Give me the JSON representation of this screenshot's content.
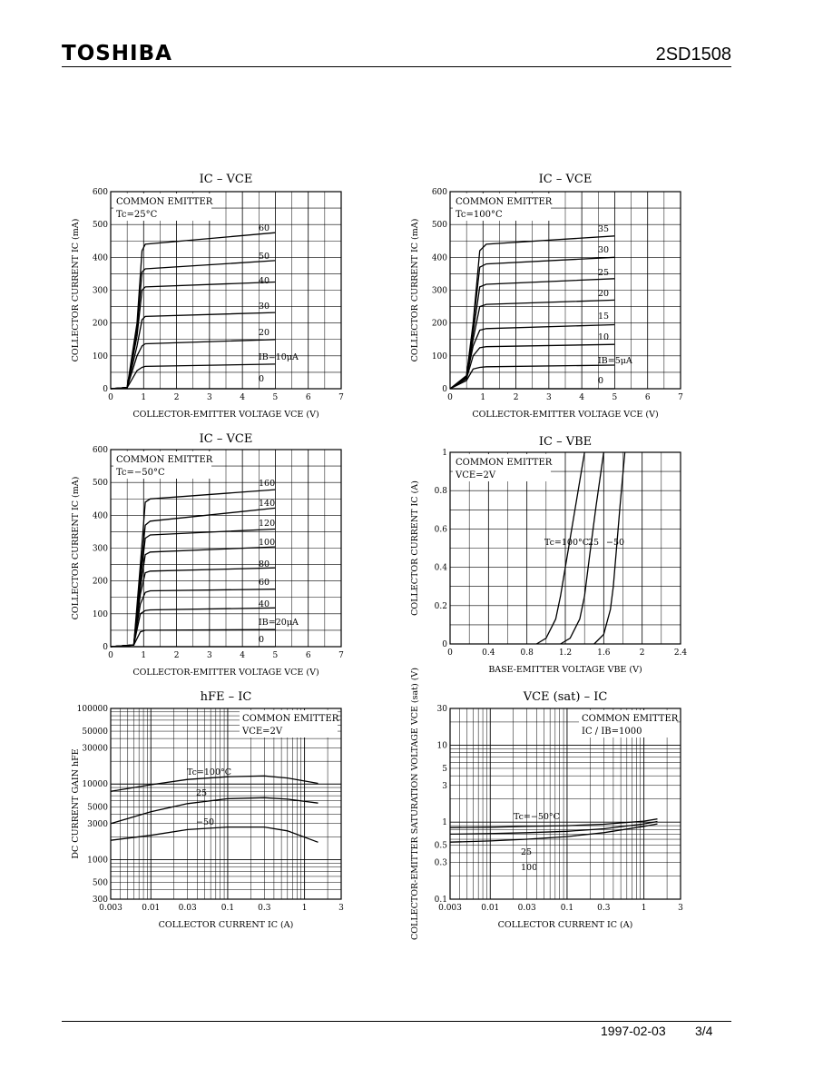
{
  "header": {
    "brand": "TOSHIBA",
    "part_number": "2SD1508"
  },
  "footer": {
    "date": "1997-02-03",
    "page": "3/4"
  },
  "chart_data": [
    {
      "id": "ic-vce-25",
      "type": "line",
      "title": "IC – VCE",
      "xlabel": "COLLECTOR-EMITTER VOLTAGE  VCE  (V)",
      "ylabel": "COLLECTOR CURRENT  IC  (mA)",
      "annotation": [
        "COMMON EMITTER",
        "Tc=25°C"
      ],
      "xlim": [
        0,
        7
      ],
      "ylim": [
        0,
        600
      ],
      "xticks": [
        0,
        1,
        2,
        3,
        4,
        5,
        6,
        7
      ],
      "yticks": [
        0,
        100,
        200,
        300,
        400,
        500,
        600
      ],
      "curve_labels": [
        "60",
        "50",
        "40",
        "30",
        "20",
        "IB=10μA",
        "0"
      ],
      "series": [
        {
          "name": "60",
          "x": [
            0,
            0.5,
            0.8,
            0.95,
            1.05,
            5
          ],
          "y": [
            0,
            4,
            200,
            420,
            440,
            475
          ]
        },
        {
          "name": "50",
          "x": [
            0,
            0.5,
            0.8,
            0.95,
            1.05,
            5
          ],
          "y": [
            0,
            4,
            180,
            355,
            365,
            390
          ]
        },
        {
          "name": "40",
          "x": [
            0,
            0.5,
            0.8,
            0.95,
            1.05,
            5
          ],
          "y": [
            0,
            4,
            160,
            300,
            310,
            325
          ]
        },
        {
          "name": "30",
          "x": [
            0,
            0.5,
            0.8,
            0.95,
            1.05,
            5
          ],
          "y": [
            0,
            4,
            130,
            210,
            220,
            232
          ]
        },
        {
          "name": "20",
          "x": [
            0,
            0.5,
            0.8,
            0.95,
            1.05,
            5
          ],
          "y": [
            0,
            4,
            100,
            130,
            137,
            150
          ]
        },
        {
          "name": "IB=10μA",
          "x": [
            0,
            0.5,
            0.8,
            0.95,
            1.05,
            5
          ],
          "y": [
            0,
            3,
            55,
            65,
            68,
            75
          ]
        },
        {
          "name": "0",
          "x": [
            0,
            5
          ],
          "y": [
            0,
            0
          ]
        }
      ]
    },
    {
      "id": "ic-vce-100",
      "type": "line",
      "title": "IC – VCE",
      "xlabel": "COLLECTOR-EMITTER VOLTAGE  VCE  (V)",
      "ylabel": "COLLECTOR CURRENT  IC  (mA)",
      "annotation": [
        "COMMON EMITTER",
        "Tc=100°C"
      ],
      "xlim": [
        0,
        7
      ],
      "ylim": [
        0,
        600
      ],
      "xticks": [
        0,
        1,
        2,
        3,
        4,
        5,
        6,
        7
      ],
      "yticks": [
        0,
        100,
        200,
        300,
        400,
        500,
        600
      ],
      "curve_labels": [
        "35",
        "30",
        "25",
        "20",
        "15",
        "10",
        "IB=5μA",
        "0"
      ],
      "series": [
        {
          "name": "35",
          "x": [
            0,
            0.5,
            0.7,
            0.9,
            1.1,
            5
          ],
          "y": [
            0,
            40,
            200,
            420,
            440,
            465
          ]
        },
        {
          "name": "30",
          "x": [
            0,
            0.5,
            0.7,
            0.9,
            1.1,
            5
          ],
          "y": [
            0,
            38,
            190,
            370,
            380,
            400
          ]
        },
        {
          "name": "25",
          "x": [
            0,
            0.5,
            0.7,
            0.9,
            1.1,
            5
          ],
          "y": [
            0,
            36,
            170,
            310,
            318,
            335
          ]
        },
        {
          "name": "20",
          "x": [
            0,
            0.5,
            0.7,
            0.9,
            1.1,
            5
          ],
          "y": [
            0,
            34,
            150,
            250,
            257,
            270
          ]
        },
        {
          "name": "15",
          "x": [
            0,
            0.5,
            0.7,
            0.9,
            1.1,
            5
          ],
          "y": [
            0,
            32,
            130,
            178,
            183,
            195
          ]
        },
        {
          "name": "10",
          "x": [
            0,
            0.5,
            0.7,
            0.9,
            1.1,
            5
          ],
          "y": [
            0,
            30,
            100,
            125,
            128,
            135
          ]
        },
        {
          "name": "IB=5μA",
          "x": [
            0,
            0.5,
            0.7,
            0.9,
            1.1,
            5
          ],
          "y": [
            0,
            25,
            60,
            65,
            67,
            72
          ]
        },
        {
          "name": "0",
          "x": [
            0,
            5
          ],
          "y": [
            0,
            0
          ]
        }
      ]
    },
    {
      "id": "ic-vce-m50",
      "type": "line",
      "title": "IC – VCE",
      "xlabel": "COLLECTOR-EMITTER VOLTAGE  VCE  (V)",
      "ylabel": "COLLECTOR CURRENT  IC  (mA)",
      "annotation": [
        "COMMON EMITTER",
        "Tc=−50°C"
      ],
      "xlim": [
        0,
        7
      ],
      "ylim": [
        0,
        600
      ],
      "xticks": [
        0,
        1,
        2,
        3,
        4,
        5,
        6,
        7
      ],
      "yticks": [
        0,
        100,
        200,
        300,
        400,
        500,
        600
      ],
      "curve_labels": [
        "160",
        "140",
        "120",
        "100",
        "80",
        "60",
        "40",
        "IB=20μA",
        "0"
      ],
      "series": [
        {
          "name": "160",
          "x": [
            0,
            0.7,
            0.9,
            1.05,
            1.2,
            5
          ],
          "y": [
            0,
            5,
            250,
            440,
            450,
            478
          ]
        },
        {
          "name": "140",
          "x": [
            0,
            0.7,
            0.9,
            1.05,
            1.2,
            5
          ],
          "y": [
            0,
            5,
            220,
            370,
            382,
            422
          ]
        },
        {
          "name": "120",
          "x": [
            0,
            0.7,
            0.9,
            1.05,
            1.2,
            5
          ],
          "y": [
            0,
            5,
            200,
            330,
            340,
            358
          ]
        },
        {
          "name": "100",
          "x": [
            0,
            0.7,
            0.9,
            1.05,
            1.2,
            5
          ],
          "y": [
            0,
            5,
            180,
            280,
            288,
            304
          ]
        },
        {
          "name": "80",
          "x": [
            0,
            0.7,
            0.9,
            1.05,
            1.2,
            5
          ],
          "y": [
            0,
            5,
            160,
            225,
            230,
            240
          ]
        },
        {
          "name": "60",
          "x": [
            0,
            0.7,
            0.9,
            1.05,
            1.2,
            5
          ],
          "y": [
            0,
            5,
            130,
            165,
            170,
            175
          ]
        },
        {
          "name": "40",
          "x": [
            0,
            0.7,
            0.9,
            1.05,
            1.2,
            5
          ],
          "y": [
            0,
            5,
            100,
            110,
            112,
            118
          ]
        },
        {
          "name": "IB=20μA",
          "x": [
            0,
            0.7,
            0.9,
            1.05,
            1.2,
            5
          ],
          "y": [
            0,
            5,
            45,
            50,
            50,
            52
          ]
        },
        {
          "name": "0",
          "x": [
            0,
            5
          ],
          "y": [
            0,
            0
          ]
        }
      ]
    },
    {
      "id": "ic-vbe",
      "type": "line",
      "title": "IC – VBE",
      "xlabel": "BASE-EMITTER VOLTAGE  VBE  (V)",
      "ylabel": "COLLECTOR CURRENT  IC  (A)",
      "annotation": [
        "COMMON EMITTER",
        "VCE=2V"
      ],
      "xlim": [
        0,
        2.4
      ],
      "ylim": [
        0,
        1.0
      ],
      "xticks": [
        0,
        0.4,
        0.8,
        1.2,
        1.6,
        2.0,
        2.4
      ],
      "yticks": [
        0,
        0.2,
        0.4,
        0.6,
        0.8,
        1.0
      ],
      "curve_labels": [
        "Tc=100°C",
        "25",
        "−50"
      ],
      "series": [
        {
          "name": "Tc=100°C",
          "x": [
            0.9,
            1.0,
            1.1,
            1.15,
            1.2,
            1.3,
            1.4
          ],
          "y": [
            0,
            0.03,
            0.13,
            0.25,
            0.4,
            0.7,
            1.0
          ]
        },
        {
          "name": "25",
          "x": [
            1.15,
            1.25,
            1.35,
            1.4,
            1.45,
            1.52,
            1.6
          ],
          "y": [
            0,
            0.03,
            0.13,
            0.25,
            0.45,
            0.72,
            1.0
          ]
        },
        {
          "name": "−50",
          "x": [
            1.5,
            1.6,
            1.67,
            1.7,
            1.73,
            1.77,
            1.82
          ],
          "y": [
            0,
            0.05,
            0.18,
            0.3,
            0.48,
            0.72,
            1.0
          ]
        }
      ]
    },
    {
      "id": "hfe-ic",
      "type": "line",
      "title": "hFE – IC",
      "xlabel": "COLLECTOR CURRENT  IC  (A)",
      "ylabel": "DC CURRENT GAIN  hFE",
      "annotation": [
        "COMMON EMITTER",
        "VCE=2V"
      ],
      "xscale": "log",
      "yscale": "log",
      "xlim": [
        0.003,
        3
      ],
      "ylim": [
        300,
        100000
      ],
      "xticks": [
        0.003,
        0.01,
        0.03,
        0.1,
        0.3,
        1,
        3
      ],
      "xtick_labels": [
        "0.003",
        "0.01",
        "0.03",
        "0.1",
        "0.3",
        "1",
        "3"
      ],
      "yticks": [
        300,
        500,
        1000,
        3000,
        5000,
        10000,
        30000,
        50000,
        100000
      ],
      "ytick_labels": [
        "300",
        "500",
        "1000",
        "3000",
        "5000",
        "10000",
        "30000",
        "50000",
        "100000"
      ],
      "curve_labels": [
        "Tc=100°C",
        "25",
        "−50"
      ],
      "series": [
        {
          "name": "Tc=100°C",
          "x": [
            0.003,
            0.01,
            0.03,
            0.1,
            0.3,
            0.6,
            1.5
          ],
          "y": [
            8000,
            9800,
            11500,
            12500,
            12800,
            12000,
            10200
          ]
        },
        {
          "name": "25",
          "x": [
            0.003,
            0.01,
            0.03,
            0.1,
            0.3,
            0.6,
            1.5
          ],
          "y": [
            3000,
            4300,
            5500,
            6400,
            6600,
            6300,
            5600
          ]
        },
        {
          "name": "−50",
          "x": [
            0.003,
            0.01,
            0.03,
            0.1,
            0.3,
            0.6,
            1.5
          ],
          "y": [
            1800,
            2100,
            2500,
            2700,
            2700,
            2400,
            1700
          ]
        }
      ]
    },
    {
      "id": "vcesat-ic",
      "type": "line",
      "title": "VCE (sat) – IC",
      "xlabel": "COLLECTOR CURRENT  IC  (A)",
      "ylabel": "COLLECTOR-EMITTER SATURATION VOLTAGE  VCE (sat)  (V)",
      "annotation": [
        "COMMON EMITTER",
        "IC / IB=1000"
      ],
      "xscale": "log",
      "yscale": "log",
      "xlim": [
        0.003,
        3
      ],
      "ylim": [
        0.1,
        30
      ],
      "xticks": [
        0.003,
        0.01,
        0.03,
        0.1,
        0.3,
        1,
        3
      ],
      "xtick_labels": [
        "0.003",
        "0.01",
        "0.03",
        "0.1",
        "0.3",
        "1",
        "3"
      ],
      "yticks": [
        0.1,
        0.3,
        0.5,
        1,
        3,
        5,
        10,
        30
      ],
      "ytick_labels": [
        "0.1",
        "0.3",
        "0.5",
        "1",
        "3",
        "5",
        "10",
        "30"
      ],
      "curve_labels": [
        "Tc=−50°C",
        "25",
        "100"
      ],
      "series": [
        {
          "name": "Tc=−50°C",
          "x": [
            0.003,
            0.01,
            0.03,
            0.1,
            0.3,
            1,
            1.5
          ],
          "y": [
            0.85,
            0.86,
            0.88,
            0.9,
            0.94,
            1.03,
            1.1
          ]
        },
        {
          "name": "25",
          "x": [
            0.003,
            0.01,
            0.03,
            0.1,
            0.3,
            1,
            1.5
          ],
          "y": [
            0.7,
            0.71,
            0.73,
            0.76,
            0.82,
            0.95,
            1.02
          ]
        },
        {
          "name": "100",
          "x": [
            0.003,
            0.01,
            0.03,
            0.1,
            0.3,
            1,
            1.5
          ],
          "y": [
            0.55,
            0.57,
            0.6,
            0.65,
            0.73,
            0.88,
            0.95
          ]
        }
      ]
    }
  ]
}
